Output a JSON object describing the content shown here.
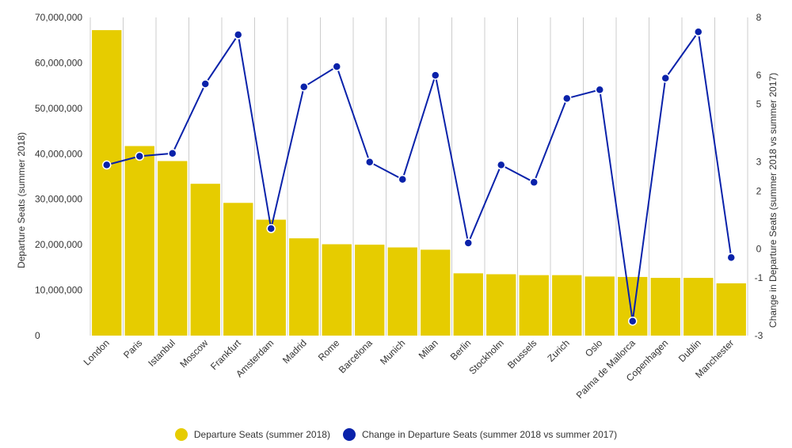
{
  "chart_data": {
    "type": "bar+line",
    "categories": [
      "London",
      "Paris",
      "Istanbul",
      "Moscow",
      "Frankfurt",
      "Amsterdam",
      "Madrid",
      "Rome",
      "Barcelona",
      "Munich",
      "Milan",
      "Berlin",
      "Stockholm",
      "Brussels",
      "Zurich",
      "Oslo",
      "Palma de Mallorca",
      "Copenhagen",
      "Dublin",
      "Manchester"
    ],
    "series": [
      {
        "name": "Departure Seats (summer 2018)",
        "type": "bar",
        "axis": "left",
        "color": "#E6CC00",
        "values": [
          67200000,
          41700000,
          38400000,
          33400000,
          29200000,
          25500000,
          21400000,
          20100000,
          20000000,
          19400000,
          18900000,
          13700000,
          13500000,
          13300000,
          13300000,
          13000000,
          12900000,
          12700000,
          12700000,
          11500000
        ]
      },
      {
        "name": "Change in Departure Seats (summer 2018 vs summer 2017)",
        "type": "line",
        "axis": "right",
        "color": "#0A22AA",
        "values": [
          2.9,
          3.2,
          3.3,
          5.7,
          7.4,
          0.7,
          5.6,
          6.3,
          3.0,
          2.4,
          6.0,
          0.2,
          2.9,
          2.3,
          5.2,
          5.5,
          -2.5,
          5.9,
          7.5,
          -0.3
        ]
      }
    ],
    "left_axis": {
      "label": "Departure Seats (summer 2018)",
      "ylim": [
        0,
        70000000
      ],
      "ticks": [
        0,
        10000000,
        20000000,
        30000000,
        40000000,
        50000000,
        60000000,
        70000000
      ],
      "tick_labels": [
        "0",
        "10,000,000",
        "20,000,000",
        "30,000,000",
        "40,000,000",
        "50,000,000",
        "60,000,000",
        "70,000,000"
      ]
    },
    "right_axis": {
      "label": "Change in Departure Seats (summer 2018 vs summer 2017)",
      "ylim": [
        -3,
        8
      ],
      "ticks": [
        -3,
        -1,
        0,
        2,
        3,
        5,
        6,
        8
      ],
      "tick_labels": [
        "-3",
        "-1",
        "0",
        "2",
        "3",
        "5",
        "6",
        "8"
      ]
    },
    "grid": "vertical",
    "legend_position": "bottom"
  }
}
